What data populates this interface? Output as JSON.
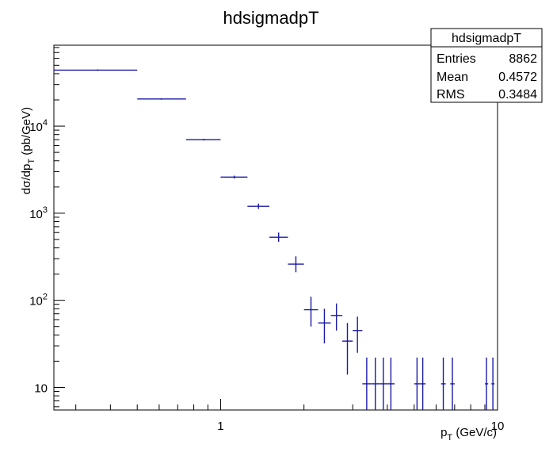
{
  "chart_data": {
    "type": "scatter",
    "title": "hdsigmadpT",
    "xlabel": {
      "main": "p",
      "sub": "T",
      "suffix": " (GeV/c)"
    },
    "ylabel": {
      "main": "dσ/dp",
      "sub": "T",
      "suffix": " (pb/GeV)"
    },
    "x_scale": "log",
    "y_scale": "log",
    "xlim": [
      0.25,
      10
    ],
    "ylim": [
      5.5,
      85000
    ],
    "x_ticks": [
      {
        "value": 1,
        "label": "1"
      },
      {
        "value": 10,
        "label": "10"
      }
    ],
    "y_ticks": [
      {
        "value": 10,
        "base": "10",
        "exp": ""
      },
      {
        "value": 100,
        "base": "10",
        "exp": "2"
      },
      {
        "value": 1000,
        "base": "10",
        "exp": "3"
      },
      {
        "value": 10000,
        "base": "10",
        "exp": "4"
      }
    ],
    "stats_box": {
      "name": "hdsigmadpT",
      "rows": [
        {
          "label": "Entries",
          "value": "8862"
        },
        {
          "label": "Mean",
          "value": "0.4572"
        },
        {
          "label": "RMS",
          "value": "0.3484"
        }
      ]
    },
    "color": "#1a1aa6",
    "points": [
      {
        "x": 0.36,
        "xlo": 0.25,
        "xhi": 0.5,
        "y": 44000,
        "ylo": 44000,
        "yhi": 44000
      },
      {
        "x": 0.61,
        "xlo": 0.5,
        "xhi": 0.75,
        "y": 20500,
        "ylo": 20500,
        "yhi": 20500
      },
      {
        "x": 0.87,
        "xlo": 0.75,
        "xhi": 1.0,
        "y": 7000,
        "ylo": 6850,
        "yhi": 7150
      },
      {
        "x": 1.12,
        "xlo": 1.0,
        "xhi": 1.25,
        "y": 2600,
        "ylo": 2500,
        "yhi": 2700
      },
      {
        "x": 1.37,
        "xlo": 1.25,
        "xhi": 1.5,
        "y": 1200,
        "ylo": 1120,
        "yhi": 1290
      },
      {
        "x": 1.62,
        "xlo": 1.5,
        "xhi": 1.75,
        "y": 530,
        "ylo": 470,
        "yhi": 600
      },
      {
        "x": 1.87,
        "xlo": 1.75,
        "xhi": 2.0,
        "y": 260,
        "ylo": 210,
        "yhi": 320
      },
      {
        "x": 2.12,
        "xlo": 2.0,
        "xhi": 2.25,
        "y": 78,
        "ylo": 50,
        "yhi": 110
      },
      {
        "x": 2.37,
        "xlo": 2.25,
        "xhi": 2.5,
        "y": 55,
        "ylo": 32,
        "yhi": 80
      },
      {
        "x": 2.62,
        "xlo": 2.5,
        "xhi": 2.75,
        "y": 67,
        "ylo": 45,
        "yhi": 92
      },
      {
        "x": 2.87,
        "xlo": 2.75,
        "xhi": 3.0,
        "y": 34,
        "ylo": 14,
        "yhi": 55
      },
      {
        "x": 3.12,
        "xlo": 3.0,
        "xhi": 3.25,
        "y": 45,
        "ylo": 25,
        "yhi": 65
      },
      {
        "x": 3.37,
        "xlo": 3.25,
        "xhi": 3.5,
        "y": 11,
        "ylo": 5.5,
        "yhi": 22
      },
      {
        "x": 3.62,
        "xlo": 3.5,
        "xhi": 3.75,
        "y": 11,
        "ylo": 5.5,
        "yhi": 22
      },
      {
        "x": 3.87,
        "xlo": 3.75,
        "xhi": 4.0,
        "y": 11,
        "ylo": 5.5,
        "yhi": 22
      },
      {
        "x": 4.12,
        "xlo": 4.0,
        "xhi": 4.25,
        "y": 11,
        "ylo": 5.5,
        "yhi": 22
      },
      {
        "x": 5.12,
        "xlo": 5.0,
        "xhi": 5.25,
        "y": 11,
        "ylo": 5.5,
        "yhi": 22
      },
      {
        "x": 5.37,
        "xlo": 5.25,
        "xhi": 5.5,
        "y": 11,
        "ylo": 5.5,
        "yhi": 22
      },
      {
        "x": 6.37,
        "xlo": 6.25,
        "xhi": 6.5,
        "y": 11,
        "ylo": 5.5,
        "yhi": 22
      },
      {
        "x": 6.87,
        "xlo": 6.75,
        "xhi": 7.0,
        "y": 11,
        "ylo": 5.5,
        "yhi": 22
      },
      {
        "x": 9.12,
        "xlo": 9.0,
        "xhi": 9.25,
        "y": 11,
        "ylo": 5.5,
        "yhi": 22
      },
      {
        "x": 9.62,
        "xlo": 9.5,
        "xhi": 9.75,
        "y": 11,
        "ylo": 5.5,
        "yhi": 22
      }
    ]
  }
}
